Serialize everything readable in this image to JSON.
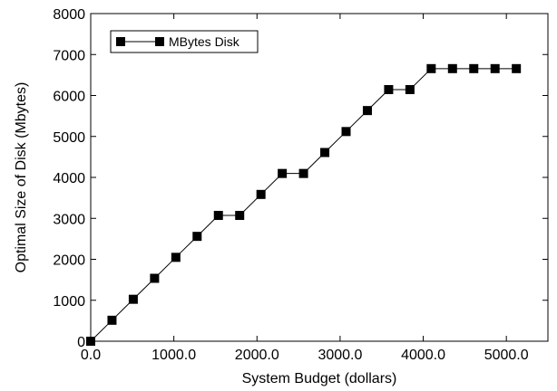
{
  "chart_data": {
    "type": "line",
    "title": "",
    "xlabel": "System Budget (dollars)",
    "ylabel": "Optimal Size of Disk (Mbytes)",
    "xlim": [
      0,
      5500
    ],
    "ylim": [
      0,
      8000
    ],
    "x_ticks": [
      0,
      1000,
      2000,
      3000,
      4000,
      5000
    ],
    "x_tick_labels": [
      "0.0",
      "1000.0",
      "2000.0",
      "3000.0",
      "4000.0",
      "5000.0"
    ],
    "y_ticks": [
      0,
      1000,
      2000,
      3000,
      4000,
      5000,
      6000,
      7000,
      8000
    ],
    "y_tick_labels": [
      "0",
      "1000",
      "2000",
      "3000",
      "4000",
      "5000",
      "6000",
      "7000",
      "8000"
    ],
    "grid": false,
    "legend_position": "top-left",
    "series": [
      {
        "name": "MBytes Disk",
        "marker": "square",
        "color": "#000000",
        "x": [
          0,
          256,
          512,
          768,
          1024,
          1280,
          1536,
          1792,
          2048,
          2304,
          2560,
          2816,
          3072,
          3328,
          3584,
          3840,
          4096,
          4352,
          4608,
          4864,
          5120
        ],
        "y": [
          0,
          512,
          1024,
          1536,
          2048,
          2560,
          3072,
          3072,
          3584,
          4096,
          4096,
          4608,
          5120,
          5632,
          6144,
          6144,
          6656,
          6656,
          6656,
          6656,
          6656
        ]
      }
    ]
  }
}
